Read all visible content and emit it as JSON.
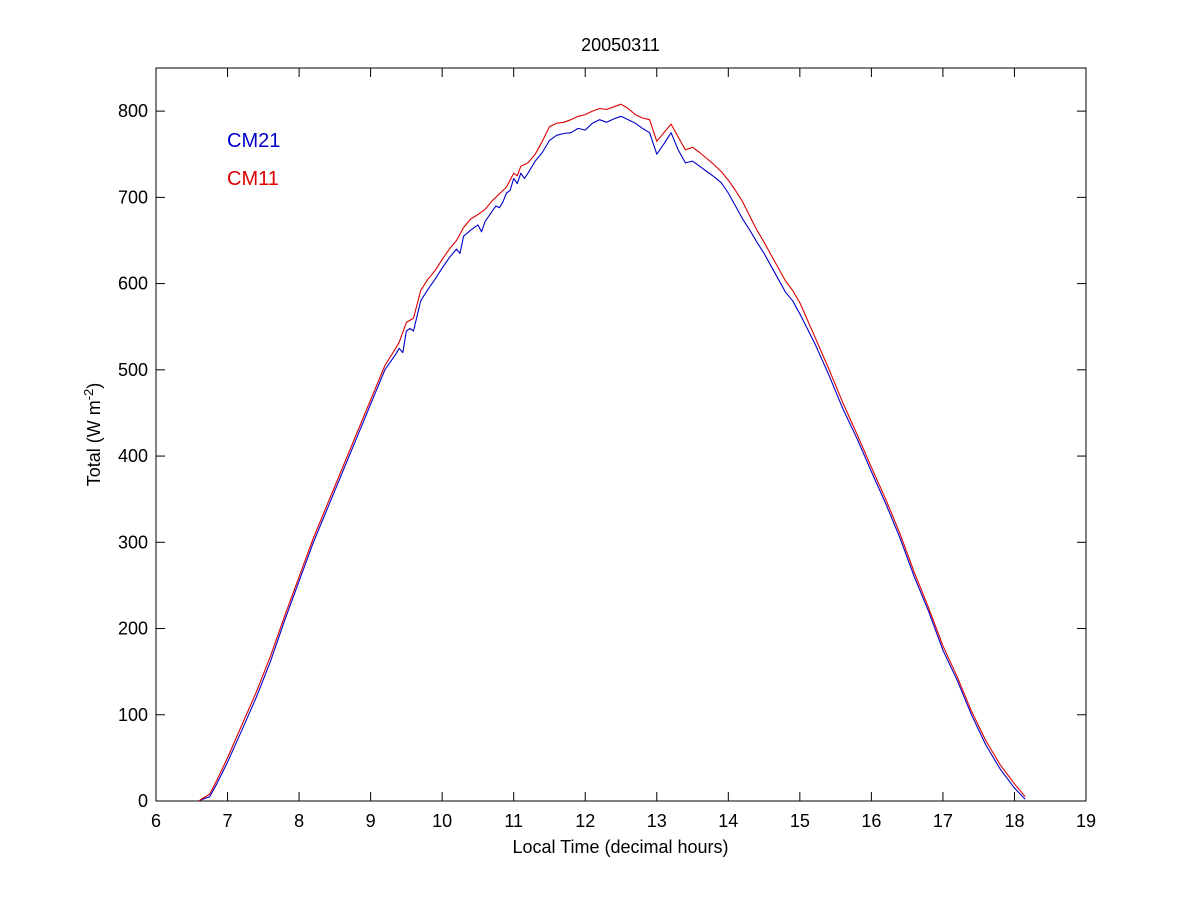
{
  "chart_data": {
    "type": "line",
    "title": "20050311",
    "xlabel": "Local Time (decimal hours)",
    "ylabel": "Total (W m",
    "ylabel_superscript": "-2",
    "ylabel_suffix": ")",
    "xlim": [
      6,
      19
    ],
    "ylim": [
      0,
      850
    ],
    "xticks": [
      6,
      7,
      8,
      9,
      10,
      11,
      12,
      13,
      14,
      15,
      16,
      17,
      18,
      19
    ],
    "yticks": [
      0,
      100,
      200,
      300,
      400,
      500,
      600,
      700,
      800
    ],
    "grid": false,
    "legend_position": "top-left",
    "series": [
      {
        "name": "CM21",
        "color": "#0000cc",
        "points": [
          [
            6.6,
            0
          ],
          [
            6.65,
            2
          ],
          [
            6.75,
            5
          ],
          [
            6.85,
            20
          ],
          [
            7.0,
            45
          ],
          [
            7.2,
            82
          ],
          [
            7.4,
            120
          ],
          [
            7.6,
            162
          ],
          [
            7.8,
            210
          ],
          [
            8.0,
            255
          ],
          [
            8.2,
            300
          ],
          [
            8.4,
            340
          ],
          [
            8.6,
            380
          ],
          [
            8.8,
            420
          ],
          [
            9.0,
            460
          ],
          [
            9.2,
            500
          ],
          [
            9.35,
            518
          ],
          [
            9.4,
            525
          ],
          [
            9.45,
            520
          ],
          [
            9.5,
            545
          ],
          [
            9.55,
            548
          ],
          [
            9.6,
            545
          ],
          [
            9.7,
            580
          ],
          [
            9.8,
            593
          ],
          [
            9.9,
            605
          ],
          [
            10.0,
            618
          ],
          [
            10.1,
            630
          ],
          [
            10.2,
            640
          ],
          [
            10.25,
            635
          ],
          [
            10.3,
            655
          ],
          [
            10.4,
            662
          ],
          [
            10.5,
            668
          ],
          [
            10.55,
            660
          ],
          [
            10.6,
            672
          ],
          [
            10.7,
            684
          ],
          [
            10.75,
            690
          ],
          [
            10.8,
            688
          ],
          [
            10.85,
            695
          ],
          [
            10.9,
            705
          ],
          [
            10.95,
            708
          ],
          [
            11.0,
            722
          ],
          [
            11.05,
            716
          ],
          [
            11.1,
            728
          ],
          [
            11.15,
            722
          ],
          [
            11.2,
            728
          ],
          [
            11.3,
            742
          ],
          [
            11.4,
            752
          ],
          [
            11.5,
            766
          ],
          [
            11.6,
            772
          ],
          [
            11.7,
            774
          ],
          [
            11.8,
            775
          ],
          [
            11.9,
            780
          ],
          [
            12.0,
            778
          ],
          [
            12.1,
            786
          ],
          [
            12.2,
            790
          ],
          [
            12.3,
            787
          ],
          [
            12.4,
            791
          ],
          [
            12.5,
            794
          ],
          [
            12.6,
            790
          ],
          [
            12.7,
            786
          ],
          [
            12.8,
            780
          ],
          [
            12.9,
            775
          ],
          [
            13.0,
            750
          ],
          [
            13.1,
            762
          ],
          [
            13.2,
            775
          ],
          [
            13.3,
            755
          ],
          [
            13.4,
            740
          ],
          [
            13.5,
            742
          ],
          [
            13.6,
            736
          ],
          [
            13.7,
            730
          ],
          [
            13.8,
            724
          ],
          [
            13.9,
            717
          ],
          [
            14.0,
            705
          ],
          [
            14.1,
            690
          ],
          [
            14.2,
            675
          ],
          [
            14.3,
            662
          ],
          [
            14.4,
            648
          ],
          [
            14.5,
            635
          ],
          [
            14.6,
            620
          ],
          [
            14.7,
            605
          ],
          [
            14.8,
            590
          ],
          [
            14.9,
            580
          ],
          [
            15.0,
            565
          ],
          [
            15.2,
            532
          ],
          [
            15.4,
            495
          ],
          [
            15.6,
            455
          ],
          [
            15.8,
            420
          ],
          [
            16.0,
            382
          ],
          [
            16.2,
            345
          ],
          [
            16.4,
            305
          ],
          [
            16.6,
            260
          ],
          [
            16.8,
            220
          ],
          [
            17.0,
            175
          ],
          [
            17.2,
            140
          ],
          [
            17.4,
            100
          ],
          [
            17.6,
            65
          ],
          [
            17.8,
            37
          ],
          [
            18.0,
            15
          ],
          [
            18.15,
            2
          ]
        ]
      },
      {
        "name": "CM11",
        "color": "#dd0000",
        "points": [
          [
            6.6,
            0
          ],
          [
            6.65,
            3
          ],
          [
            6.75,
            8
          ],
          [
            6.85,
            24
          ],
          [
            7.0,
            50
          ],
          [
            7.2,
            88
          ],
          [
            7.4,
            126
          ],
          [
            7.6,
            168
          ],
          [
            7.8,
            215
          ],
          [
            8.0,
            260
          ],
          [
            8.2,
            305
          ],
          [
            8.4,
            345
          ],
          [
            8.6,
            385
          ],
          [
            8.8,
            425
          ],
          [
            9.0,
            465
          ],
          [
            9.2,
            505
          ],
          [
            9.35,
            525
          ],
          [
            9.4,
            532
          ],
          [
            9.5,
            555
          ],
          [
            9.6,
            560
          ],
          [
            9.7,
            592
          ],
          [
            9.8,
            605
          ],
          [
            9.9,
            615
          ],
          [
            10.0,
            628
          ],
          [
            10.1,
            640
          ],
          [
            10.2,
            650
          ],
          [
            10.3,
            665
          ],
          [
            10.4,
            675
          ],
          [
            10.5,
            680
          ],
          [
            10.6,
            686
          ],
          [
            10.7,
            696
          ],
          [
            10.8,
            704
          ],
          [
            10.9,
            712
          ],
          [
            11.0,
            728
          ],
          [
            11.05,
            725
          ],
          [
            11.1,
            736
          ],
          [
            11.2,
            740
          ],
          [
            11.3,
            750
          ],
          [
            11.4,
            765
          ],
          [
            11.5,
            782
          ],
          [
            11.6,
            786
          ],
          [
            11.7,
            787
          ],
          [
            11.8,
            790
          ],
          [
            11.9,
            794
          ],
          [
            12.0,
            796
          ],
          [
            12.1,
            800
          ],
          [
            12.2,
            803
          ],
          [
            12.3,
            802
          ],
          [
            12.4,
            805
          ],
          [
            12.5,
            808
          ],
          [
            12.6,
            803
          ],
          [
            12.7,
            796
          ],
          [
            12.8,
            792
          ],
          [
            12.9,
            790
          ],
          [
            13.0,
            765
          ],
          [
            13.1,
            775
          ],
          [
            13.2,
            785
          ],
          [
            13.3,
            770
          ],
          [
            13.4,
            755
          ],
          [
            13.5,
            758
          ],
          [
            13.6,
            752
          ],
          [
            13.7,
            745
          ],
          [
            13.8,
            738
          ],
          [
            13.9,
            730
          ],
          [
            14.0,
            720
          ],
          [
            14.1,
            708
          ],
          [
            14.2,
            695
          ],
          [
            14.3,
            678
          ],
          [
            14.4,
            662
          ],
          [
            14.5,
            648
          ],
          [
            14.6,
            633
          ],
          [
            14.7,
            618
          ],
          [
            14.8,
            603
          ],
          [
            14.9,
            592
          ],
          [
            15.0,
            578
          ],
          [
            15.2,
            540
          ],
          [
            15.4,
            502
          ],
          [
            15.6,
            462
          ],
          [
            15.8,
            425
          ],
          [
            16.0,
            387
          ],
          [
            16.2,
            350
          ],
          [
            16.4,
            310
          ],
          [
            16.6,
            265
          ],
          [
            16.8,
            224
          ],
          [
            17.0,
            180
          ],
          [
            17.2,
            144
          ],
          [
            17.4,
            104
          ],
          [
            17.6,
            70
          ],
          [
            17.8,
            42
          ],
          [
            18.0,
            20
          ],
          [
            18.15,
            5
          ]
        ]
      }
    ]
  }
}
